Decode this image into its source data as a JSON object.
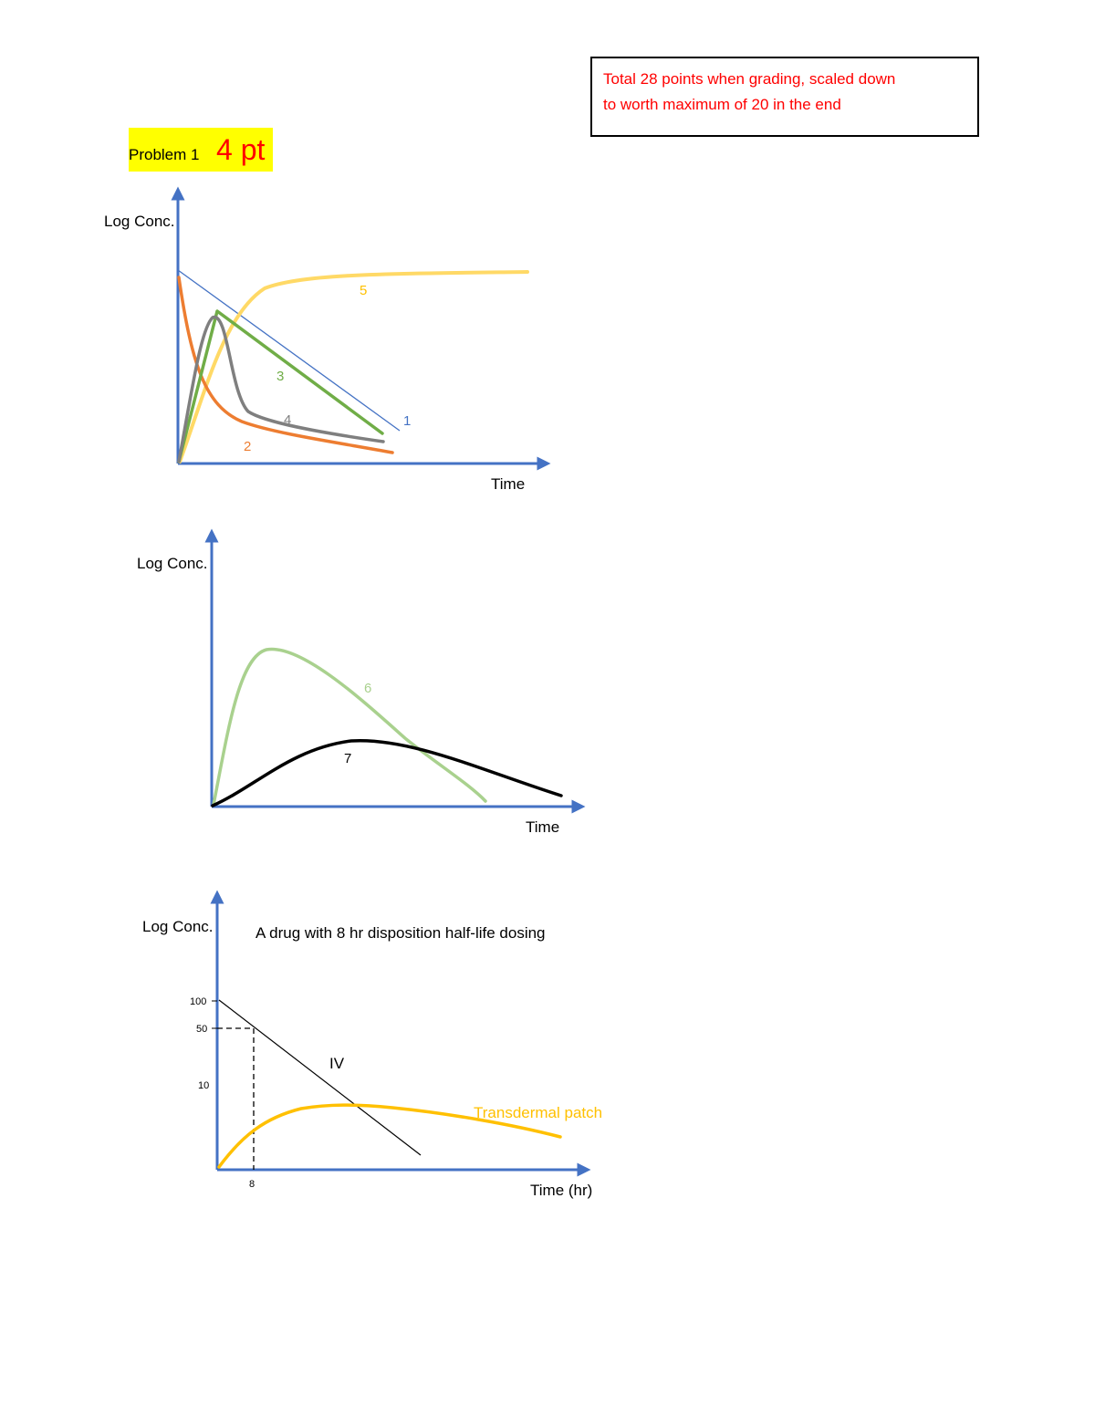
{
  "note": {
    "line1": "Total 28 points when grading, scaled down",
    "line2": "to worth maximum of 20 in the end"
  },
  "problem": {
    "label": "Problem 1",
    "points": "4 pt"
  },
  "colors": {
    "axis": "#4472c4",
    "curve1": "#4472c4",
    "curve2": "#ed7d31",
    "curve3": "#70ad47",
    "curve4": "#7f7f7f",
    "curve5": "#ffc000",
    "curve6": "#a9d18e",
    "curve7": "#000000",
    "patch": "#ffc000",
    "note_text": "#ff0000"
  },
  "graph1": {
    "ylabel": "Log Conc.",
    "xlabel": "Time",
    "curve_labels": {
      "c1": "1",
      "c2": "2",
      "c3": "3",
      "c4": "4",
      "c5": "5"
    }
  },
  "graph2": {
    "ylabel": "Log Conc.",
    "xlabel": "Time",
    "curve_labels": {
      "c6": "6",
      "c7": "7"
    }
  },
  "graph3": {
    "ylabel": "Log Conc.",
    "title": "A drug with 8 hr disposition half-life dosing",
    "xlabel": "Time (hr)",
    "yticks": [
      "100",
      "50",
      "10"
    ],
    "xtick": "8",
    "iv_label": "IV",
    "patch_label": "Transdermal patch"
  }
}
